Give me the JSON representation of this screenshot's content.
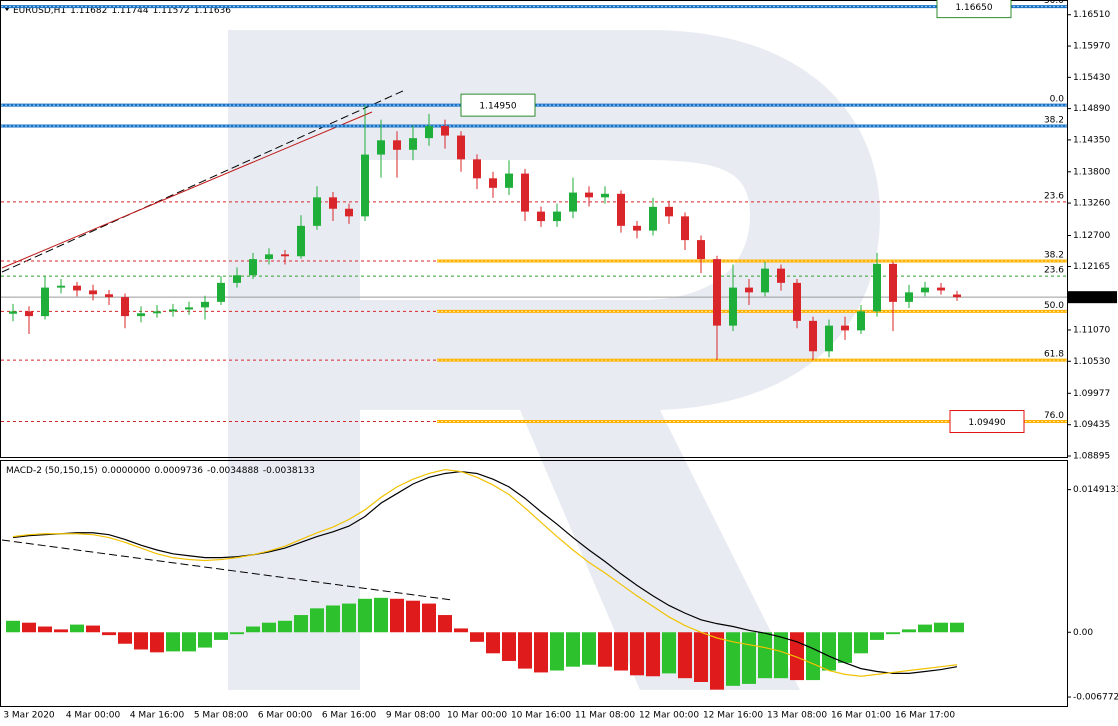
{
  "chart_data": [
    {
      "type": "candlestick",
      "title": "EURUSD,H1",
      "categories": [
        null,
        "3 Mar 2020",
        null,
        null,
        null,
        "4 Mar 00:00",
        null,
        null,
        null,
        "4 Mar 16:00",
        null,
        null,
        null,
        "5 Mar 08:00",
        null,
        null,
        null,
        "6 Mar 00:00",
        null,
        null,
        null,
        "6 Mar 16:00",
        null,
        null,
        null,
        "9 Mar 08:00",
        null,
        null,
        null,
        "10 Mar 00:00",
        null,
        null,
        null,
        "10 Mar 16:00",
        null,
        null,
        null,
        "11 Mar 08:00",
        null,
        null,
        null,
        "12 Mar 00:00",
        null,
        null,
        null,
        "12 Mar 16:00",
        null,
        null,
        null,
        "13 Mar 08:00",
        null,
        null,
        null,
        "16 Mar 01:00",
        null,
        null,
        null,
        "16 Mar 17:00",
        null,
        null
      ],
      "open": [
        1.1135,
        1.11391,
        1.11309,
        1.11801,
        1.11834,
        1.11752,
        1.11686,
        1.11637,
        1.11309,
        1.11358,
        1.11391,
        1.11424,
        1.1146,
        1.11555,
        1.11883,
        1.12014,
        1.12293,
        1.12375,
        1.12342,
        1.12867,
        1.13359,
        1.13162,
        1.13031,
        1.14097,
        1.14343,
        1.14179,
        1.1438,
        1.14589,
        1.14425,
        1.14015,
        1.13687,
        1.13523,
        1.13769,
        1.13113,
        1.12949,
        1.13113,
        1.13441,
        1.13359,
        1.1342,
        1.12867,
        1.12785,
        1.13195,
        1.13031,
        1.12621,
        1.12293,
        1.11145,
        1.11801,
        1.11719,
        1.12129,
        1.11883,
        1.11227,
        1.10702,
        1.11145,
        1.11063,
        1.11391,
        1.12211,
        1.11555,
        1.11719,
        1.11801,
        1.11682
      ],
      "high": [
        1.1152,
        1.1148,
        1.12,
        1.1195,
        1.119,
        1.1185,
        1.1176,
        1.117,
        1.1148,
        1.115,
        1.1152,
        1.1156,
        1.1166,
        1.12,
        1.1215,
        1.124,
        1.1248,
        1.1245,
        1.1305,
        1.1355,
        1.1345,
        1.1325,
        1.1495,
        1.147,
        1.145,
        1.146,
        1.148,
        1.147,
        1.145,
        1.141,
        1.138,
        1.14,
        1.1385,
        1.132,
        1.1325,
        1.137,
        1.1355,
        1.1355,
        1.1348,
        1.1295,
        1.1335,
        1.133,
        1.131,
        1.127,
        1.1235,
        1.122,
        1.1195,
        1.1225,
        1.122,
        1.1195,
        1.113,
        1.1125,
        1.113,
        1.115,
        1.124,
        1.1225,
        1.1185,
        1.119,
        1.1188,
        1.11744
      ],
      "low": [
        1.1122,
        1.11,
        1.1125,
        1.117,
        1.1165,
        1.1158,
        1.115,
        1.111,
        1.112,
        1.1128,
        1.113,
        1.1133,
        1.1125,
        1.115,
        1.118,
        1.1195,
        1.122,
        1.122,
        1.123,
        1.128,
        1.1295,
        1.129,
        1.1295,
        1.137,
        1.137,
        1.14,
        1.1425,
        1.142,
        1.138,
        1.135,
        1.1335,
        1.134,
        1.1295,
        1.1285,
        1.1285,
        1.13,
        1.132,
        1.1325,
        1.1275,
        1.1265,
        1.127,
        1.129,
        1.1245,
        1.1205,
        1.1055,
        1.1105,
        1.115,
        1.1165,
        1.1175,
        1.111,
        1.1055,
        1.106,
        1.109,
        1.11,
        1.113,
        1.1105,
        1.1145,
        1.1165,
        1.1168,
        1.11572
      ],
      "close": [
        1.11391,
        1.11309,
        1.11801,
        1.11834,
        1.11752,
        1.11686,
        1.11637,
        1.11309,
        1.11358,
        1.11391,
        1.11424,
        1.1146,
        1.11555,
        1.11883,
        1.12014,
        1.12293,
        1.12375,
        1.12342,
        1.12867,
        1.13359,
        1.13162,
        1.13031,
        1.14097,
        1.14343,
        1.14179,
        1.1438,
        1.14589,
        1.14425,
        1.14015,
        1.13687,
        1.13523,
        1.13769,
        1.13113,
        1.12949,
        1.13113,
        1.13441,
        1.13359,
        1.1342,
        1.12867,
        1.12785,
        1.13195,
        1.13031,
        1.12621,
        1.12293,
        1.11145,
        1.11801,
        1.11719,
        1.12129,
        1.11883,
        1.11227,
        1.10702,
        1.11145,
        1.11063,
        1.11391,
        1.12211,
        1.11555,
        1.11719,
        1.11801,
        1.11752,
        1.11636
      ],
      "up_color": "#1fae3a",
      "down_color": "#d9262b",
      "current_price_color": "#9a9a9a",
      "ylim": [
        1.08895,
        1.1673
      ],
      "yticks": [
        {
          "value": 1.1651,
          "label": "1.16510"
        },
        {
          "value": 1.1597,
          "label": "1.15970"
        },
        {
          "value": 1.1543,
          "label": "1.15430"
        },
        {
          "value": 1.1489,
          "label": "1.14890"
        },
        {
          "value": 1.1435,
          "label": "1.14350"
        },
        {
          "value": 1.138,
          "label": "1.13800"
        },
        {
          "value": 1.1326,
          "label": "1.13260"
        },
        {
          "value": 1.127,
          "label": "1.12700"
        },
        {
          "value": 1.12165,
          "label": "1.12165"
        },
        {
          "value": 1.1107,
          "label": "1.11070"
        },
        {
          "value": 1.1053,
          "label": "1.10530"
        },
        {
          "value": 1.09977,
          "label": "1.09977"
        },
        {
          "value": 1.09435,
          "label": "1.09435"
        },
        {
          "value": 1.08895,
          "label": "1.08895"
        }
      ],
      "levels": [
        {
          "price": 1.1665,
          "label": "50.0",
          "color": "#2e8b2e",
          "style": "blue"
        },
        {
          "price": 1.1495,
          "label": "0.0",
          "color": "#d9262b",
          "style": "blue"
        },
        {
          "price": 1.1459,
          "label": "38.2",
          "color": "#2e8b2e",
          "style": "blue"
        },
        {
          "price": 1.1328,
          "label": "23.6",
          "color": "#d9262b",
          "style": "red"
        },
        {
          "price": 1.1226,
          "label": "38.2",
          "color": "#d9262b",
          "style": "orange"
        },
        {
          "price": 1.12,
          "label": "23.6",
          "color": "#2e8b2e",
          "style": "green"
        },
        {
          "price": 1.1139,
          "label": "50.0",
          "color": "#d9262b",
          "style": "orange"
        },
        {
          "price": 1.1055,
          "label": "61.8",
          "color": "#d9262b",
          "style": "orange"
        },
        {
          "price": 1.0949,
          "label": "76.0",
          "color": "#d9262b",
          "style": "orange"
        }
      ],
      "annotations": [
        {
          "value": 1.1665,
          "label": "1.16650",
          "color": "#2e8b2e"
        },
        {
          "value": 1.1495,
          "label": "1.14950",
          "color": "#2e8b2e"
        },
        {
          "value": 1.0949,
          "label": "1.09490",
          "color": "#e01010"
        }
      ]
    },
    {
      "type": "macd",
      "title": "MACD-2 (50,150,15)",
      "readout": [
        {
          "value": 0,
          "label": "0.0000000"
        },
        {
          "value": 0.0009736,
          "label": "0.0009736"
        },
        {
          "value": -0.0034888,
          "label": "-0.0034888"
        },
        {
          "value": -0.0038133,
          "label": "-0.0038133"
        }
      ],
      "ylim": [
        -0.0075,
        0.0178
      ],
      "yticks": [
        0.0149133,
        {
          "value": 0,
          "label": "0.00"
        },
        -0.006772
      ],
      "series": [
        {
          "type": "bar",
          "up_color": "#2ec12e",
          "down_color": "#e01b1b",
          "values": [
            0.0012,
            0.001,
            0.0006,
            0.0003,
            0.0008,
            0.0007,
            -0.0003,
            -0.0012,
            -0.0018,
            -0.0021,
            -0.002,
            -0.002,
            -0.0016,
            -0.0008,
            -0.0002,
            0.0006,
            0.001,
            0.0012,
            0.0018,
            0.0025,
            0.0028,
            0.003,
            0.0035,
            0.0036,
            0.0035,
            0.0033,
            0.003,
            0.0018,
            0.0004,
            -0.001,
            -0.0022,
            -0.003,
            -0.0038,
            -0.0042,
            -0.004,
            -0.0036,
            -0.0034,
            -0.0036,
            -0.004,
            -0.0045,
            -0.0046,
            -0.0043,
            -0.0048,
            -0.0052,
            -0.006,
            -0.0056,
            -0.0054,
            -0.0048,
            -0.0048,
            -0.005,
            -0.005,
            -0.004,
            -0.0032,
            -0.0022,
            -0.0008,
            -0.0002,
            0.0003,
            0.0008,
            0.001,
            0.001
          ]
        },
        {
          "type": "line",
          "color": "#000000",
          "values": [
            0.0099,
            0.0101,
            0.0102,
            0.0103,
            0.0104,
            0.0104,
            0.0102,
            0.0097,
            0.0091,
            0.0086,
            0.0082,
            0.008,
            0.0078,
            0.0078,
            0.0079,
            0.0081,
            0.0084,
            0.0088,
            0.0094,
            0.01,
            0.0105,
            0.0111,
            0.0121,
            0.0135,
            0.0145,
            0.0155,
            0.0162,
            0.0166,
            0.0168,
            0.0166,
            0.016,
            0.0152,
            0.014,
            0.0126,
            0.0113,
            0.0099,
            0.0086,
            0.0074,
            0.0061,
            0.0049,
            0.0038,
            0.0028,
            0.002,
            0.0013,
            0.0009,
            0.0006,
            0.0002,
            -0.0001,
            -0.0005,
            -0.001,
            -0.0017,
            -0.0025,
            -0.0032,
            -0.0038,
            -0.0041,
            -0.0043,
            -0.0043,
            -0.0041,
            -0.0039,
            -0.0036
          ]
        },
        {
          "type": "line",
          "color": "#f2c200",
          "values": [
            0.01,
            0.0102,
            0.0103,
            0.0103,
            0.0103,
            0.0102,
            0.0099,
            0.0094,
            0.0088,
            0.0082,
            0.0078,
            0.0076,
            0.0075,
            0.0076,
            0.0078,
            0.0081,
            0.0085,
            0.009,
            0.0097,
            0.0104,
            0.011,
            0.0118,
            0.0128,
            0.0141,
            0.0152,
            0.016,
            0.0166,
            0.017,
            0.0168,
            0.0162,
            0.0154,
            0.0144,
            0.013,
            0.0115,
            0.01,
            0.0086,
            0.0073,
            0.0062,
            0.005,
            0.0038,
            0.0027,
            0.0016,
            0.0007,
            0.0,
            -0.0006,
            -0.001,
            -0.0013,
            -0.0016,
            -0.002,
            -0.0026,
            -0.0033,
            -0.004,
            -0.0044,
            -0.0046,
            -0.0044,
            -0.0042,
            -0.004,
            -0.0038,
            -0.0036,
            -0.0034
          ]
        }
      ]
    }
  ]
}
